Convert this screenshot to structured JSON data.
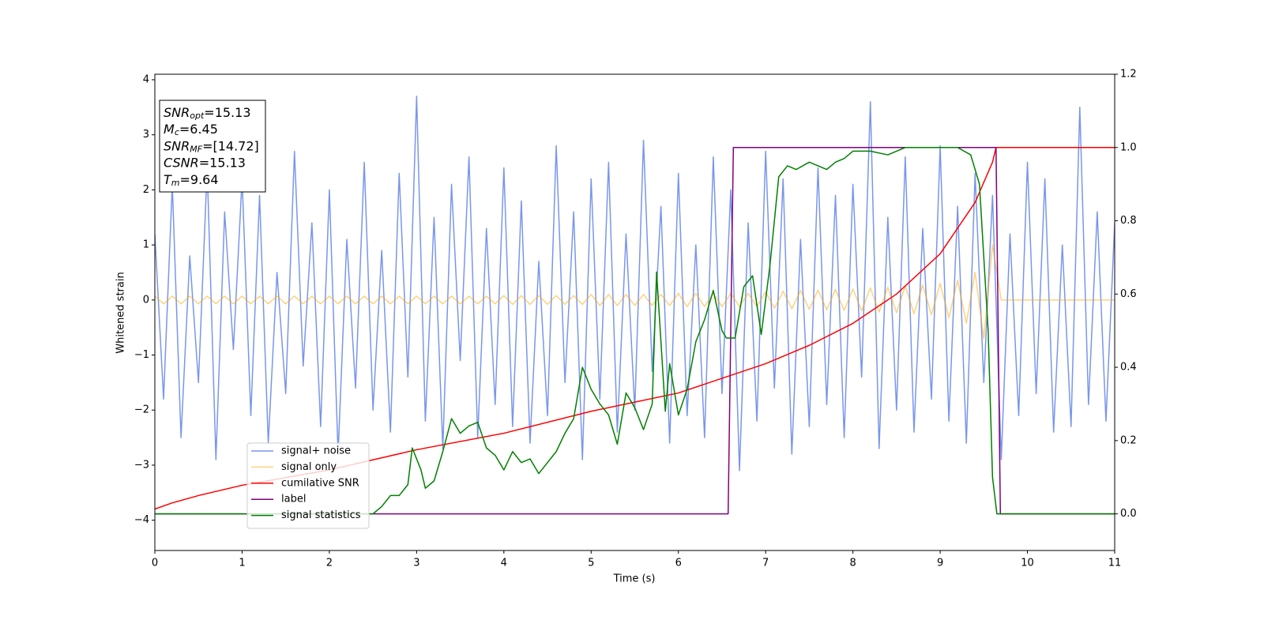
{
  "chart_data": {
    "type": "line",
    "xlabel": "Time (s)",
    "ylabel": "Whitened strain",
    "xlim": [
      0,
      11
    ],
    "xticks": [
      0,
      1,
      2,
      3,
      4,
      5,
      6,
      7,
      8,
      9,
      10,
      11
    ],
    "ylim": [
      -4.55,
      4.1
    ],
    "yticks": [
      {
        "value": -4,
        "label": "−4"
      },
      {
        "value": -3,
        "label": "−3"
      },
      {
        "value": -2,
        "label": "−2"
      },
      {
        "value": -1,
        "label": "−1"
      },
      0,
      1,
      2,
      3,
      4
    ],
    "y2lim": [
      -0.1,
      1.2
    ],
    "y2ticks": [
      {
        "value": 0,
        "label": "0.0"
      },
      {
        "value": 0.2,
        "label": "0.2"
      },
      {
        "value": 0.4,
        "label": "0.4"
      },
      {
        "value": 0.6,
        "label": "0.6"
      },
      {
        "value": 0.8,
        "label": "0.8"
      },
      {
        "value": 1.0,
        "label": "1.0"
      },
      {
        "value": 1.2,
        "label": "1.2"
      }
    ],
    "legend": "lower left",
    "annotation": [
      {
        "symbol": "SNR",
        "subscript": "opt",
        "text": "=15.13"
      },
      {
        "symbol": "M",
        "subscript": "c",
        "text": "=6.45"
      },
      {
        "symbol": "SNR",
        "subscript": "MF",
        "text": "=[14.72]"
      },
      {
        "symbol": "CSNR",
        "subscript": null,
        "text": "=15.13"
      },
      {
        "symbol": "T",
        "subscript": "m",
        "text": "=9.64"
      }
    ],
    "x": [
      0,
      0.1,
      0.2,
      0.3,
      0.4,
      0.5,
      0.6,
      0.7,
      0.8,
      0.9,
      1,
      1.1,
      1.2,
      1.3,
      1.4,
      1.5,
      1.6,
      1.7,
      1.8,
      1.9,
      2,
      2.1,
      2.2,
      2.3,
      2.4,
      2.5,
      2.6,
      2.7,
      2.8,
      2.9,
      3,
      3.1,
      3.2,
      3.3,
      3.4,
      3.5,
      3.6,
      3.7,
      3.8,
      3.9,
      4,
      4.1,
      4.2,
      4.3,
      4.4,
      4.5,
      4.6,
      4.7,
      4.8,
      4.9,
      5,
      5.1,
      5.2,
      5.3,
      5.4,
      5.5,
      5.6,
      5.7,
      5.8,
      5.9,
      6,
      6.1,
      6.2,
      6.3,
      6.4,
      6.5,
      6.6,
      6.7,
      6.8,
      6.9,
      7,
      7.1,
      7.2,
      7.3,
      7.4,
      7.5,
      7.6,
      7.7,
      7.8,
      7.9,
      8,
      8.1,
      8.2,
      8.3,
      8.4,
      8.5,
      8.6,
      8.7,
      8.8,
      8.9,
      9,
      9.1,
      9.2,
      9.3,
      9.4,
      9.5,
      9.6,
      9.7,
      9.8,
      9.9,
      10,
      10.1,
      10.2,
      10.3,
      10.4,
      10.5,
      10.6,
      10.7,
      10.8,
      10.9,
      11
    ],
    "series": [
      {
        "name": "signal+ noise",
        "color": "royalblue",
        "alpha": 0.7,
        "values": [
          1.2,
          -1.8,
          2.1,
          -2.5,
          0.8,
          -1.5,
          2.4,
          -2.9,
          1.6,
          -0.9,
          2.2,
          -2.1,
          1.9,
          -2.6,
          0.5,
          -1.7,
          2.7,
          -1.2,
          1.4,
          -2.3,
          2.0,
          -2.8,
          1.1,
          -1.6,
          2.5,
          -2.0,
          0.9,
          -2.4,
          2.3,
          -1.4,
          3.7,
          -2.2,
          1.5,
          -2.7,
          2.1,
          -1.1,
          2.6,
          -2.5,
          1.3,
          -1.9,
          2.4,
          -2.3,
          1.8,
          -2.6,
          0.7,
          -2.1,
          2.8,
          -1.5,
          1.6,
          -2.9,
          2.2,
          -1.8,
          2.5,
          -2.4,
          1.2,
          -2.0,
          2.9,
          -1.3,
          1.7,
          -2.6,
          2.3,
          -2.1,
          1.0,
          -2.5,
          2.6,
          -1.7,
          2.0,
          -3.1,
          1.4,
          -2.2,
          2.7,
          -1.6,
          2.2,
          -2.8,
          1.1,
          -2.3,
          2.4,
          -1.9,
          1.9,
          -2.5,
          2.1,
          -1.4,
          3.6,
          -2.7,
          1.5,
          -2.0,
          2.6,
          -2.4,
          1.3,
          -1.8,
          2.8,
          -2.2,
          1.7,
          -2.6,
          2.3,
          -1.5,
          1.9,
          -2.9,
          1.2,
          -2.1,
          2.5,
          -1.7,
          2.2,
          -2.4,
          1.0,
          -2.3,
          3.5,
          -1.9,
          1.6,
          -2.2,
          1.4
        ]
      },
      {
        "name": "signal only",
        "color": "orange",
        "alpha": 0.5,
        "values": [
          0.07,
          -0.07,
          0.07,
          -0.07,
          0.07,
          -0.07,
          0.07,
          -0.07,
          0.07,
          -0.07,
          0.07,
          -0.07,
          0.07,
          -0.07,
          0.07,
          -0.07,
          0.07,
          -0.07,
          0.07,
          -0.07,
          0.07,
          -0.07,
          0.07,
          -0.07,
          0.07,
          -0.07,
          0.07,
          -0.07,
          0.07,
          -0.07,
          0.07,
          -0.07,
          0.07,
          -0.07,
          0.07,
          -0.07,
          0.07,
          -0.07,
          0.07,
          -0.07,
          0.08,
          -0.08,
          0.08,
          -0.08,
          0.08,
          -0.08,
          0.08,
          -0.08,
          0.08,
          -0.08,
          0.1,
          -0.1,
          0.1,
          -0.1,
          0.1,
          -0.1,
          0.1,
          -0.1,
          0.1,
          -0.1,
          0.12,
          -0.12,
          0.12,
          -0.12,
          0.12,
          -0.12,
          0.12,
          -0.12,
          0.12,
          -0.12,
          0.15,
          -0.15,
          0.16,
          -0.16,
          0.17,
          -0.17,
          0.18,
          -0.18,
          0.19,
          -0.19,
          0.2,
          -0.2,
          0.22,
          -0.22,
          0.23,
          -0.23,
          0.25,
          -0.25,
          0.27,
          -0.27,
          0.3,
          -0.32,
          0.36,
          -0.42,
          0.5,
          -0.7,
          1.0,
          0,
          0,
          0,
          0,
          0,
          0,
          0,
          0,
          0,
          0,
          0,
          0,
          0,
          0
        ]
      },
      {
        "name": "cumilative SNR",
        "color": "red",
        "axis": "y2",
        "x": [
          0,
          0.2,
          0.5,
          1,
          2,
          3,
          4,
          5,
          6,
          7,
          7.5,
          8,
          8.5,
          9,
          9.2,
          9.4,
          9.6,
          9.64,
          11
        ],
        "values": [
          0.013,
          0.03,
          0.05,
          0.078,
          0.12,
          0.175,
          0.22,
          0.28,
          0.33,
          0.41,
          0.46,
          0.52,
          0.6,
          0.71,
          0.78,
          0.85,
          0.96,
          1.0,
          1.0
        ]
      },
      {
        "name": "label",
        "color": "purple",
        "axis": "y2",
        "x": [
          0,
          6.57,
          6.63,
          9.64,
          9.69,
          11
        ],
        "values": [
          0,
          0,
          1,
          1,
          0,
          0
        ]
      },
      {
        "name": "signal statistics",
        "color": "green",
        "axis": "y2",
        "x": [
          0,
          2.5,
          2.6,
          2.7,
          2.8,
          2.9,
          2.95,
          3.05,
          3.1,
          3.2,
          3.3,
          3.4,
          3.5,
          3.6,
          3.7,
          3.8,
          3.9,
          4.0,
          4.1,
          4.2,
          4.3,
          4.4,
          4.5,
          4.6,
          4.7,
          4.8,
          4.9,
          5.0,
          5.1,
          5.2,
          5.3,
          5.4,
          5.5,
          5.6,
          5.7,
          5.75,
          5.85,
          5.9,
          6.0,
          6.1,
          6.2,
          6.3,
          6.4,
          6.5,
          6.55,
          6.65,
          6.75,
          6.85,
          6.95,
          7.05,
          7.15,
          7.25,
          7.35,
          7.5,
          7.6,
          7.7,
          7.8,
          7.9,
          8.0,
          8.2,
          8.4,
          8.6,
          8.8,
          9.0,
          9.2,
          9.35,
          9.45,
          9.55,
          9.6,
          9.65,
          11
        ],
        "values": [
          0,
          0,
          0.02,
          0.05,
          0.05,
          0.08,
          0.18,
          0.12,
          0.07,
          0.09,
          0.17,
          0.26,
          0.22,
          0.24,
          0.25,
          0.18,
          0.16,
          0.12,
          0.17,
          0.14,
          0.15,
          0.11,
          0.14,
          0.17,
          0.22,
          0.26,
          0.4,
          0.34,
          0.3,
          0.27,
          0.19,
          0.33,
          0.29,
          0.23,
          0.3,
          0.66,
          0.28,
          0.41,
          0.27,
          0.34,
          0.47,
          0.53,
          0.61,
          0.5,
          0.48,
          0.48,
          0.62,
          0.65,
          0.49,
          0.68,
          0.92,
          0.95,
          0.94,
          0.96,
          0.95,
          0.94,
          0.96,
          0.97,
          0.99,
          0.99,
          0.98,
          1.0,
          1.0,
          1.0,
          1.0,
          0.98,
          0.9,
          0.5,
          0.1,
          0,
          0
        ]
      }
    ]
  }
}
